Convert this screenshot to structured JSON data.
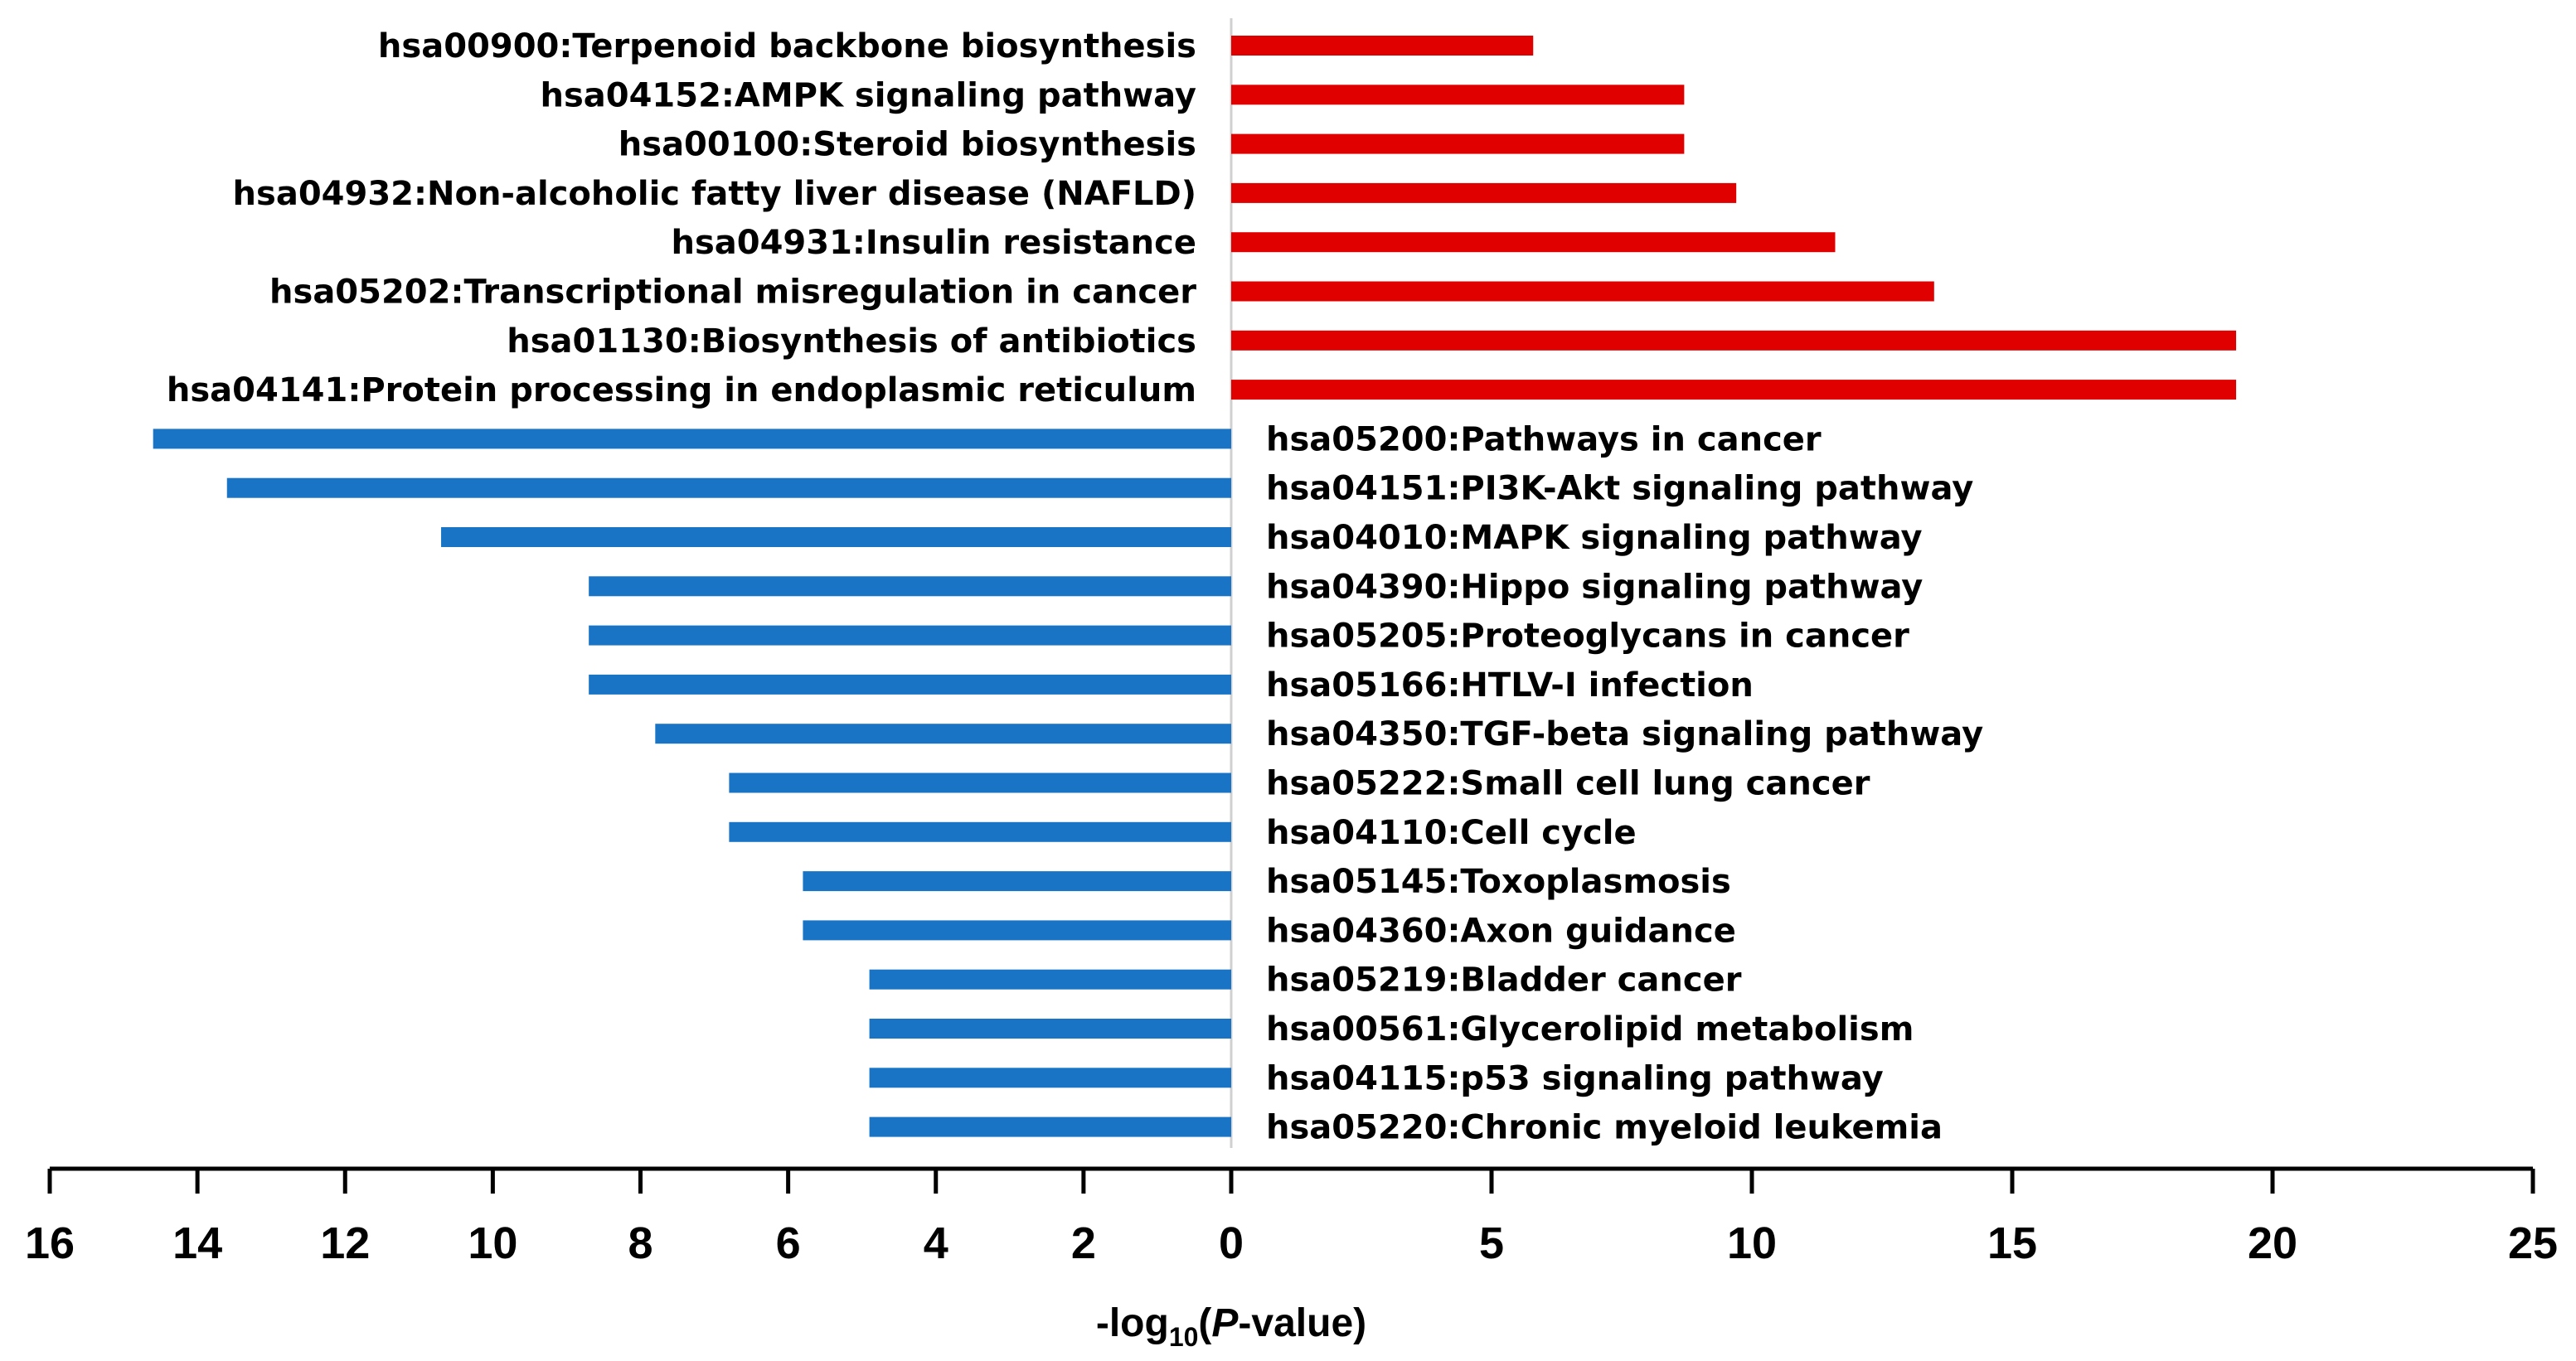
{
  "chart_data": {
    "type": "bar",
    "orientation": "horizontal-diverging",
    "xlabel_parts": {
      "prefix": "-log",
      "sub": "10",
      "open": "(",
      "italic": "P",
      "suffix": "-value)"
    },
    "left_axis": {
      "ticks": [
        "16",
        "14",
        "12",
        "10",
        "8",
        "6",
        "4",
        "2",
        "0"
      ],
      "range": [
        16,
        0
      ]
    },
    "right_axis": {
      "ticks": [
        "5",
        "10",
        "15",
        "20",
        "25"
      ],
      "range": [
        0,
        25
      ]
    },
    "colors": {
      "right": "#e00000",
      "left": "#1a74c6"
    },
    "right_series": [
      {
        "label": "hsa00900:Terpenoid backbone biosynthesis",
        "value": 5.8
      },
      {
        "label": "hsa04152:AMPK signaling pathway",
        "value": 8.7
      },
      {
        "label": "hsa00100:Steroid biosynthesis",
        "value": 8.7
      },
      {
        "label": "hsa04932:Non-alcoholic fatty liver disease (NAFLD)",
        "value": 9.7
      },
      {
        "label": "hsa04931:Insulin resistance",
        "value": 11.6
      },
      {
        "label": "hsa05202:Transcriptional misregulation in cancer",
        "value": 13.5
      },
      {
        "label": "hsa01130:Biosynthesis of antibiotics",
        "value": 19.3
      },
      {
        "label": "hsa04141:Protein processing in endoplasmic reticulum",
        "value": 19.3
      }
    ],
    "left_series": [
      {
        "label": "hsa05200:Pathways in cancer",
        "value": 14.6
      },
      {
        "label": "hsa04151:PI3K-Akt signaling pathway",
        "value": 13.6
      },
      {
        "label": "hsa04010:MAPK signaling pathway",
        "value": 10.7
      },
      {
        "label": "hsa04390:Hippo signaling pathway",
        "value": 8.7
      },
      {
        "label": "hsa05205:Proteoglycans in cancer",
        "value": 8.7
      },
      {
        "label": "hsa05166:HTLV-I infection",
        "value": 8.7
      },
      {
        "label": "hsa04350:TGF-beta signaling pathway",
        "value": 7.8
      },
      {
        "label": "hsa05222:Small cell lung cancer",
        "value": 6.8
      },
      {
        "label": "hsa04110:Cell cycle",
        "value": 6.8
      },
      {
        "label": "hsa05145:Toxoplasmosis",
        "value": 5.8
      },
      {
        "label": "hsa04360:Axon guidance",
        "value": 5.8
      },
      {
        "label": "hsa05219:Bladder cancer",
        "value": 4.9
      },
      {
        "label": "hsa00561:Glycerolipid metabolism",
        "value": 4.9
      },
      {
        "label": "hsa04115:p53 signaling pathway",
        "value": 4.9
      },
      {
        "label": "hsa05220:Chronic myeloid leukemia",
        "value": 4.9
      }
    ]
  }
}
